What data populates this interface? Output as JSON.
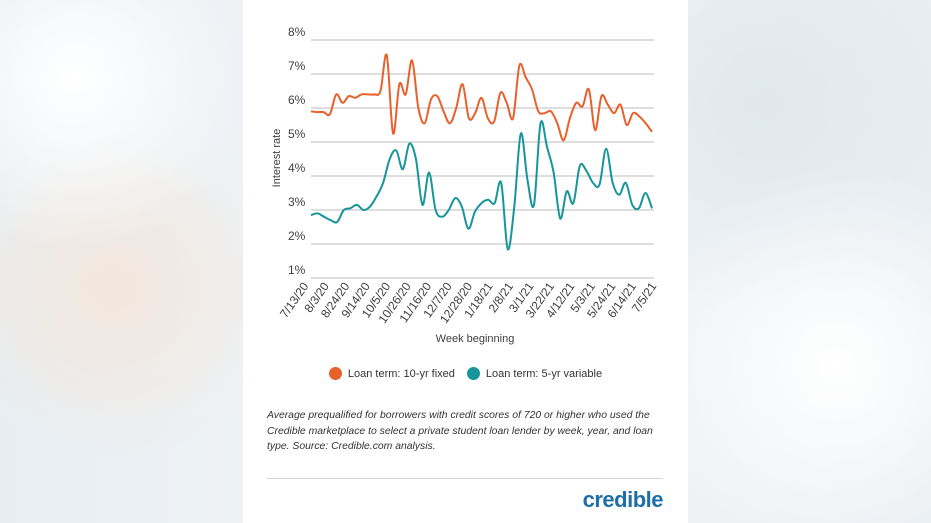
{
  "chart_data": {
    "type": "line",
    "xlabel": "Week beginning",
    "ylabel": "Interest rate",
    "ylim": [
      1,
      8
    ],
    "yticks": [
      "1%",
      "2%",
      "3%",
      "4%",
      "5%",
      "6%",
      "7%",
      "8%"
    ],
    "xtick_labels": [
      "7/13/20",
      "8/3/20",
      "8/24/20",
      "9/14/20",
      "10/5/20",
      "10/26/20",
      "11/16/20",
      "12/7/20",
      "12/28/20",
      "1/18/21",
      "2/8/21",
      "3/1/21",
      "3/22/21",
      "4/12/21",
      "5/3/21",
      "5/24/21",
      "6/14/21",
      "7/5/21"
    ],
    "legend_placement": "bottom",
    "series": [
      {
        "name": "Loan term: 10-yr fixed",
        "color": "#e8602c",
        "values": [
          5.9,
          5.88,
          5.88,
          5.82,
          6.4,
          6.15,
          6.35,
          6.3,
          6.4,
          6.4,
          6.4,
          6.5,
          7.55,
          5.25,
          6.7,
          6.4,
          7.4,
          6.0,
          5.55,
          6.25,
          6.35,
          5.9,
          5.55,
          6.0,
          6.7,
          5.7,
          5.85,
          6.3,
          5.7,
          5.6,
          6.45,
          6.15,
          5.7,
          7.25,
          6.9,
          6.55,
          5.9,
          5.85,
          5.9,
          5.55,
          5.05,
          5.7,
          6.15,
          6.05,
          6.55,
          5.35,
          6.35,
          6.1,
          5.85,
          6.1,
          5.5,
          5.85,
          5.75,
          5.55,
          5.3
        ]
      },
      {
        "name": "Loan term: 5-yr variable",
        "color": "#16959b",
        "values": [
          2.85,
          2.9,
          2.8,
          2.7,
          2.65,
          3.0,
          3.05,
          3.15,
          3.0,
          3.1,
          3.4,
          3.8,
          4.5,
          4.75,
          4.2,
          4.95,
          4.5,
          3.15,
          4.1,
          3.0,
          2.8,
          3.0,
          3.35,
          3.1,
          2.45,
          2.95,
          3.2,
          3.3,
          3.2,
          3.8,
          1.85,
          3.1,
          5.25,
          3.9,
          3.15,
          5.55,
          4.85,
          4.1,
          2.75,
          3.55,
          3.2,
          4.3,
          4.15,
          3.8,
          3.75,
          4.8,
          3.8,
          3.45,
          3.8,
          3.15,
          3.05,
          3.5,
          3.05
        ]
      }
    ]
  },
  "legend": {
    "item1": "Loan term: 10-yr fixed",
    "item2": "Loan term: 5-yr variable",
    "color1": "#e8602c",
    "color2": "#16959b"
  },
  "caption": "Average prequalified for borrowers with credit scores of 720 or higher who used the Credible marketplace to select a private student loan lender by week, year, and loan type. Source: Credible.com analysis.",
  "brand": {
    "logo": "credible",
    "color": "#1e6fa8"
  }
}
